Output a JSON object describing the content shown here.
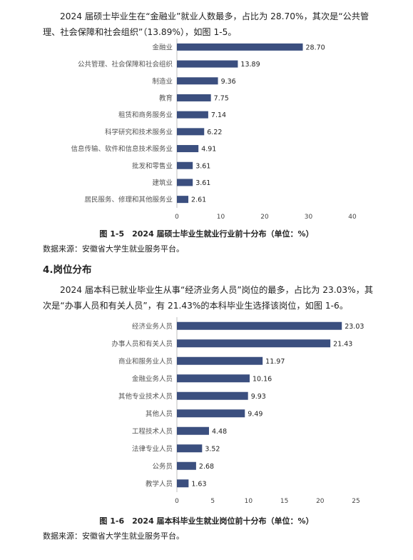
{
  "paragraph_1": "2024 届硕士毕业生在“金融业”就业人数最多，占比为 28.70%，其次是“公共管理、社会保障和社会组织”（13.89%），如图 1-5。",
  "section_heading": "4.岗位分布",
  "paragraph_2": "2024 届本科已就业毕业生从事“经济业务人员”岗位的最多，占比为 23.03%，其次是“办事人员和有关人员”，有 21.43%的本科毕业生选择该岗位，如图 1-6。",
  "figure_1": {
    "caption": "图 1-5　2024 届硕士毕业生就业行业前十分布（单位：%）",
    "source": "数据来源：安徽省大学生就业服务平台。"
  },
  "figure_2": {
    "caption": "图 1-6　2024 届本科毕业生就业岗位前十分布（单位：%）",
    "source": "数据来源：安徽省大学生就业服务平台。"
  },
  "chart_data": [
    {
      "type": "bar",
      "orientation": "horizontal",
      "categories": [
        "金融业",
        "公共管理、社会保障和社会组织",
        "制造业",
        "教育",
        "租赁和商务服务业",
        "科学研究和技术服务业",
        "信息传输、软件和信息技术服务业",
        "批发和零售业",
        "建筑业",
        "居民服务、修理和其他服务业"
      ],
      "values": [
        28.7,
        13.89,
        9.36,
        7.75,
        7.14,
        6.22,
        4.91,
        3.61,
        3.61,
        2.61
      ],
      "value_labels": [
        "28.70",
        "13.89",
        "9.36",
        "7.75",
        "7.14",
        "6.22",
        "4.91",
        "3.61",
        "3.61",
        "2.61"
      ],
      "xlim": [
        0,
        40
      ],
      "xticks": [
        0,
        10,
        20,
        30,
        40
      ],
      "bar_color": "#3b4f7f",
      "grid": false
    },
    {
      "type": "bar",
      "orientation": "horizontal",
      "categories": [
        "经济业务人员",
        "办事人员和有关人员",
        "商业和服务业人员",
        "金融业务人员",
        "其他专业技术人员",
        "其他人员",
        "工程技术人员",
        "法律专业人员",
        "公务员",
        "教学人员"
      ],
      "values": [
        23.03,
        21.43,
        11.97,
        10.16,
        9.93,
        9.49,
        4.48,
        3.52,
        2.68,
        1.63
      ],
      "value_labels": [
        "23.03",
        "21.43",
        "11.97",
        "10.16",
        "9.93",
        "9.49",
        "4.48",
        "3.52",
        "2.68",
        "1.63"
      ],
      "xlim": [
        0,
        25
      ],
      "xticks": [
        0,
        5,
        10,
        15,
        20,
        25
      ],
      "bar_color": "#3b4f7f",
      "grid": false
    }
  ]
}
